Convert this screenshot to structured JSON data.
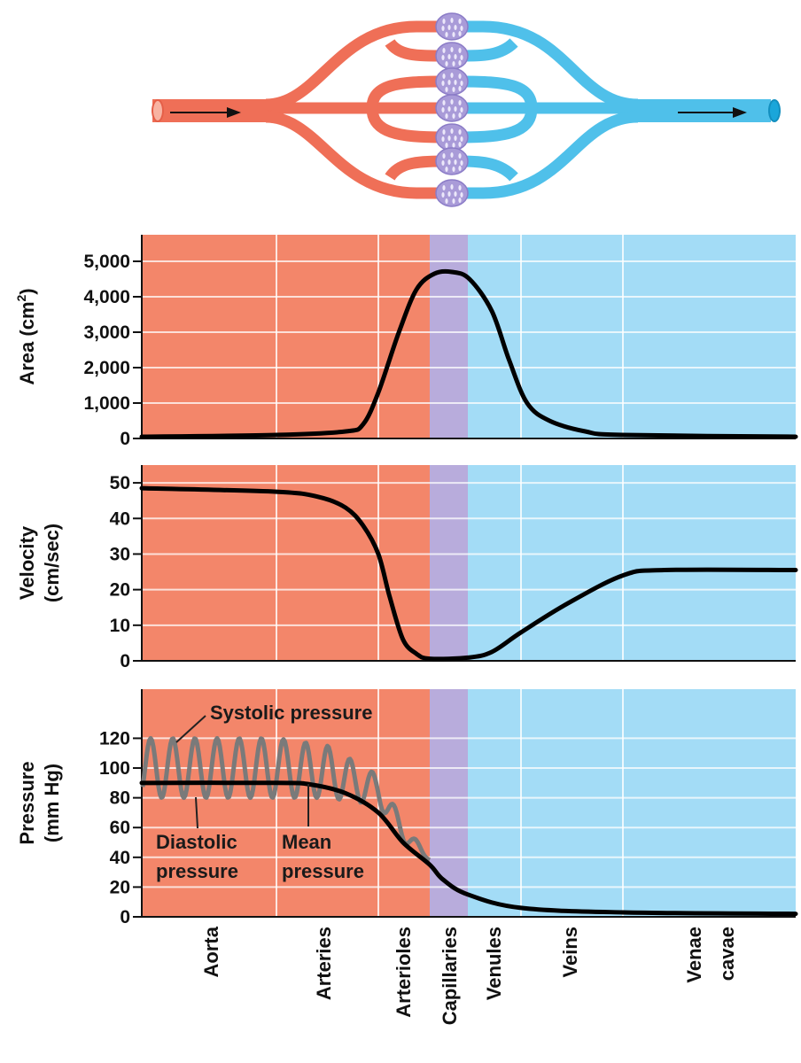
{
  "colors": {
    "arterial": "#f3866a",
    "capillary": "#b8acdc",
    "venous": "#a3dcf6",
    "grid": "#ffffff",
    "curve": "#000000",
    "pulse": "#7a7a7a",
    "artery_vessel": "#ef6f57",
    "vein_vessel": "#4fc0ea",
    "capillary_bed": "#a99bd8"
  },
  "categories": [
    "Aorta",
    "Arteries",
    "Arterioles",
    "Capillaries",
    "Venules",
    "Veins",
    "Venae cavae"
  ],
  "category_lines": [
    [
      "Aorta"
    ],
    [
      "Arteries"
    ],
    [
      "Arterioles"
    ],
    [
      "Capillaries"
    ],
    [
      "Venules"
    ],
    [
      "Veins"
    ],
    [
      "Venae",
      "cavae"
    ]
  ],
  "chart_data": [
    {
      "type": "line",
      "ylabel": "Area (cm",
      "ylabel_sup": "2",
      "ylabel_end": ")",
      "ylim": [
        0,
        5750
      ],
      "yticks": [
        0,
        1000,
        2000,
        3000,
        4000,
        5000
      ],
      "yticklabels": [
        "0",
        "1,000",
        "2,000",
        "3,000",
        "4,000",
        "5,000"
      ],
      "categories": [
        "Aorta",
        "Arteries",
        "Arterioles",
        "Capillaries",
        "Venules",
        "Veins",
        "Venae cavae"
      ],
      "series": [
        {
          "points": [
            [
              0,
              50
            ],
            [
              1,
              100
            ],
            [
              1.68,
              200
            ],
            [
              1.85,
              400
            ],
            [
              2,
              1300
            ],
            [
              2.4,
              3000
            ],
            [
              2.74,
              4200
            ],
            [
              3.12,
              4650
            ],
            [
              3.58,
              4700
            ],
            [
              4.03,
              4500
            ],
            [
              4.45,
              3600
            ],
            [
              4.78,
              2200
            ],
            [
              5.06,
              1000
            ],
            [
              5.28,
              500
            ],
            [
              5.63,
              200
            ],
            [
              6,
              100
            ],
            [
              7,
              50
            ]
          ]
        }
      ]
    },
    {
      "type": "line",
      "ylabel": "Velocity",
      "ylabel2": "(cm/sec)",
      "ylim": [
        0,
        55
      ],
      "yticks": [
        0,
        10,
        20,
        30,
        40,
        50
      ],
      "yticklabels": [
        "0",
        "10",
        "20",
        "30",
        "40",
        "50"
      ],
      "categories": [
        "Aorta",
        "Arteries",
        "Arterioles",
        "Capillaries",
        "Venules",
        "Veins",
        "Venae cavae"
      ],
      "series": [
        {
          "points": [
            [
              0,
              48.5
            ],
            [
              1,
              47.5
            ],
            [
              1.42,
              46
            ],
            [
              1.68,
              43
            ],
            [
              1.85,
              38
            ],
            [
              2,
              30
            ],
            [
              2.22,
              18
            ],
            [
              2.48,
              6
            ],
            [
              2.74,
              2
            ],
            [
              3,
              0.6
            ],
            [
              4,
              0.9
            ],
            [
              4.45,
              2.5
            ],
            [
              5,
              8
            ],
            [
              5.45,
              16
            ],
            [
              6,
              24
            ],
            [
              6.24,
              25.5
            ],
            [
              7,
              25.5
            ]
          ]
        }
      ]
    },
    {
      "type": "line",
      "ylabel": "Pressure",
      "ylabel2": "(mm Hg)",
      "ylim": [
        0,
        153
      ],
      "yticks": [
        0,
        20,
        40,
        60,
        80,
        100,
        120
      ],
      "yticklabels": [
        "0",
        "20",
        "40",
        "60",
        "80",
        "100",
        "120"
      ],
      "categories": [
        "Aorta",
        "Arteries",
        "Arterioles",
        "Capillaries",
        "Venules",
        "Veins",
        "Venae cavae"
      ],
      "series": [
        {
          "name": "Mean pressure",
          "label": [
            "Mean",
            "pressure"
          ],
          "points": [
            [
              0,
              90
            ],
            [
              1,
              90
            ],
            [
              1.33,
              89
            ],
            [
              1.68,
              83
            ],
            [
              2,
              70
            ],
            [
              2.48,
              50
            ],
            [
              3,
              35
            ],
            [
              3.35,
              25
            ],
            [
              4,
              15
            ],
            [
              5,
              6
            ],
            [
              6,
              3
            ],
            [
              7,
              2
            ]
          ]
        },
        {
          "name": "Systolic pressure",
          "label": [
            "Systolic pressure"
          ],
          "points": [
            [
              0,
              120
            ],
            [
              1,
              120
            ],
            [
              1.5,
              115
            ],
            [
              2,
              95
            ],
            [
              2.5,
              62
            ],
            [
              3,
              40
            ]
          ]
        },
        {
          "name": "Diastolic pressure",
          "label": [
            "Diastolic",
            "pressure"
          ],
          "points": [
            [
              0,
              80
            ],
            [
              1,
              80
            ],
            [
              1.5,
              80
            ],
            [
              2,
              75
            ],
            [
              2.5,
              50
            ],
            [
              3,
              38
            ]
          ]
        }
      ]
    }
  ]
}
